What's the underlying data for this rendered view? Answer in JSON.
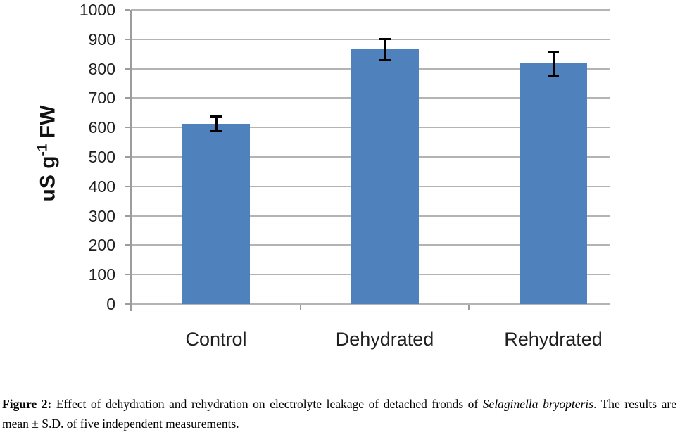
{
  "chart_data": {
    "type": "bar",
    "title": "",
    "categories": [
      "Control",
      "Dehydrated",
      "Rehydrated"
    ],
    "values": [
      612,
      865,
      818
    ],
    "error_bars": [
      27,
      37,
      42
    ],
    "xlabel": "",
    "ylabel": "uS g-1 FW",
    "ylabel_parts": {
      "base": "uS g",
      "superscript": "-1",
      "suffix": " FW"
    },
    "ylim": [
      0,
      1000
    ],
    "ytick_step": 100,
    "yticks": [
      0,
      100,
      200,
      300,
      400,
      500,
      600,
      700,
      800,
      900,
      1000
    ],
    "grid": true,
    "legend": "none",
    "bar_color": "#4F81BD",
    "gridline_color": "#b4b4b4",
    "axis_color": "#9c9c9c",
    "error_bar_color": "#000000",
    "tick_label_color": "#1f1f1f"
  },
  "figure": {
    "caption": {
      "label": "Figure 2:",
      "before_italic": "Effect of dehydration and rehydration on electrolyte leakage of detached fronds of",
      "species_italic": "Selaginella bryopteris",
      "after_italic": ". The results are mean ± S.D. of five independent measurements."
    }
  }
}
